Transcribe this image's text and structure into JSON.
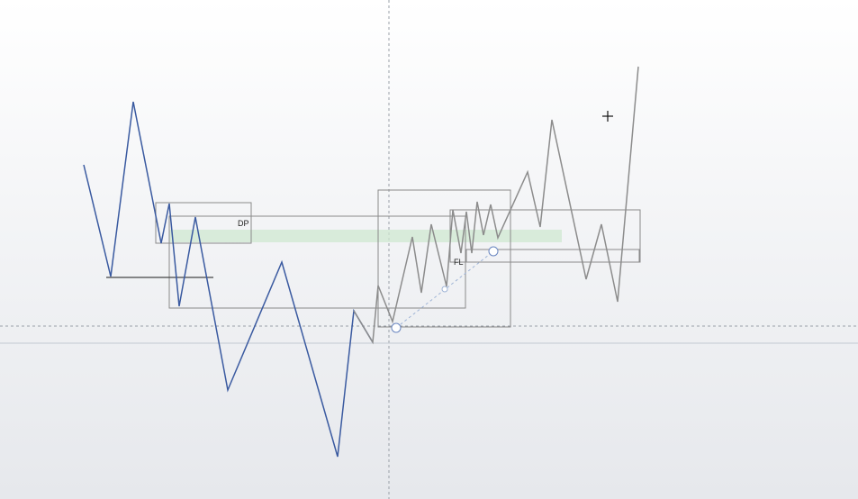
{
  "chart_data": {
    "type": "line",
    "annotations": {
      "dp_label": "DP",
      "fl_label": "FL"
    },
    "series": [
      {
        "color": "#3a5aa0",
        "points": [
          [
            93,
            183
          ],
          [
            123,
            307
          ],
          [
            148,
            113
          ],
          [
            179,
            270
          ],
          [
            188,
            226
          ],
          [
            199,
            340
          ],
          [
            217,
            241
          ],
          [
            253,
            433
          ],
          [
            313,
            291
          ],
          [
            375,
            507
          ],
          [
            393,
            345
          ],
          [
            414,
            380
          ]
        ]
      },
      {
        "color": "#8c8c8c",
        "points": [
          [
            393,
            345
          ],
          [
            414,
            380
          ],
          [
            420,
            317
          ],
          [
            436,
            357
          ],
          [
            458,
            263
          ],
          [
            468,
            325
          ],
          [
            479,
            249
          ],
          [
            496,
            318
          ],
          [
            503,
            233
          ],
          [
            512,
            281
          ],
          [
            518,
            235
          ],
          [
            524,
            281
          ],
          [
            530,
            224
          ],
          [
            537,
            261
          ],
          [
            545,
            227
          ],
          [
            553,
            264
          ],
          [
            586,
            191
          ],
          [
            600,
            252
          ],
          [
            613,
            133
          ],
          [
            651,
            310
          ],
          [
            668,
            249
          ],
          [
            686,
            335
          ],
          [
            709,
            74
          ]
        ]
      }
    ],
    "colors": {
      "blue_line": "#3a5aa0",
      "grey_line": "#8c8c8c",
      "zone_fill": "#cfe8d0",
      "box_stroke": "#8a8a8a",
      "crosshair": "#9aa0a8",
      "dotted": "#9fb4d6"
    }
  }
}
